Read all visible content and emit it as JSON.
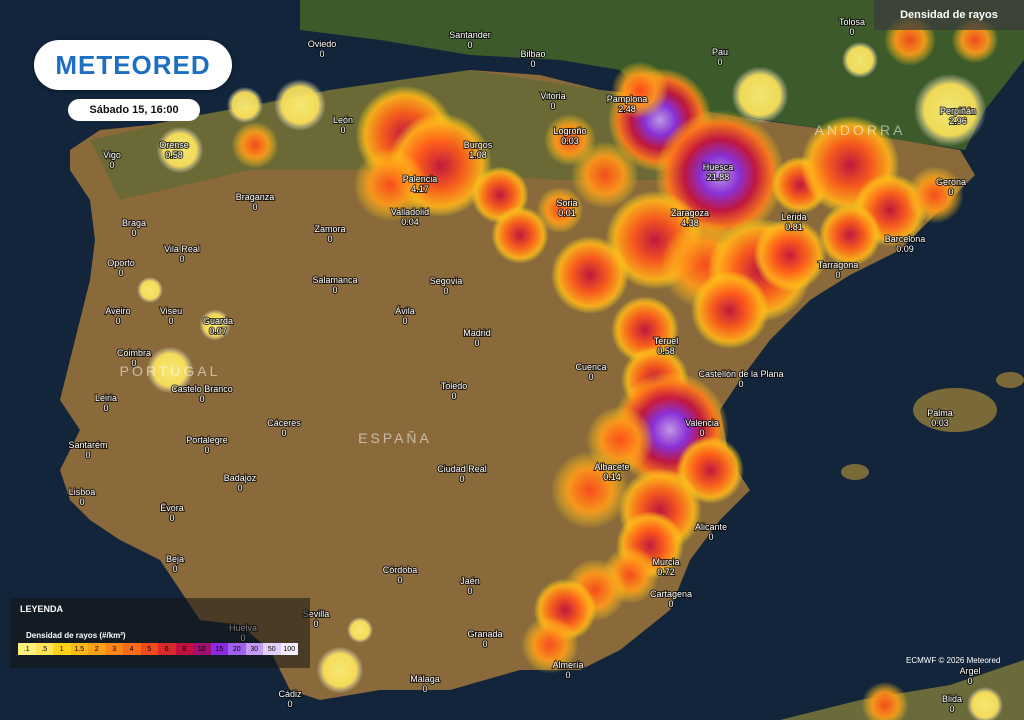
{
  "header": {
    "logo": "METEORED",
    "date": "Sábado 15, 16:00",
    "layer": "Densidad de rayos"
  },
  "map": {
    "countries": [
      "PORTUGAL",
      "ESPAÑA",
      "ANDORRA"
    ],
    "cities": [
      {
        "name": "Tolosa",
        "value": 0
      },
      {
        "name": "Santander",
        "value": 0
      },
      {
        "name": "Oviedo",
        "value": 0
      },
      {
        "name": "Bilbao",
        "value": 0
      },
      {
        "name": "Pau",
        "value": 0
      },
      {
        "name": "Vitoria",
        "value": 0
      },
      {
        "name": "Pamplona",
        "value": 2.48
      },
      {
        "name": "León",
        "value": 0
      },
      {
        "name": "Perpiñán",
        "value": 2.96
      },
      {
        "name": "Logroño",
        "value": 0.03
      },
      {
        "name": "Orense",
        "value": 0.58
      },
      {
        "name": "Burgos",
        "value": 1.08
      },
      {
        "name": "Vigo",
        "value": 0
      },
      {
        "name": "Huesca",
        "value": 21.88
      },
      {
        "name": "Palencia",
        "value": 4.17
      },
      {
        "name": "Gerona",
        "value": 0
      },
      {
        "name": "Braganza",
        "value": 0
      },
      {
        "name": "Soria",
        "value": 0.01
      },
      {
        "name": "Valladolid",
        "value": 0.04
      },
      {
        "name": "Zaragoza",
        "value": 4.38
      },
      {
        "name": "Lérida",
        "value": 0.81
      },
      {
        "name": "Braga",
        "value": 0
      },
      {
        "name": "Zamora",
        "value": 0
      },
      {
        "name": "Barcelona",
        "value": 0.09
      },
      {
        "name": "Vila Real",
        "value": 0
      },
      {
        "name": "Oporto",
        "value": 0
      },
      {
        "name": "Tarragona",
        "value": 0
      },
      {
        "name": "Salamanca",
        "value": 0
      },
      {
        "name": "Segovia",
        "value": 0
      },
      {
        "name": "Aveiro",
        "value": 0
      },
      {
        "name": "Viseu",
        "value": 0
      },
      {
        "name": "Ávila",
        "value": 0
      },
      {
        "name": "Guarda",
        "value": 0.07
      },
      {
        "name": "Madrid",
        "value": 0
      },
      {
        "name": "Teruel",
        "value": 0.58
      },
      {
        "name": "Coimbra",
        "value": 0
      },
      {
        "name": "Cuenca",
        "value": 0
      },
      {
        "name": "Castellón de la Plana",
        "value": 0
      },
      {
        "name": "Castelo Branco",
        "value": 0
      },
      {
        "name": "Toledo",
        "value": 0
      },
      {
        "name": "Leiria",
        "value": 0
      },
      {
        "name": "Palma",
        "value": 0.03
      },
      {
        "name": "Cáceres",
        "value": 0
      },
      {
        "name": "Valencia",
        "value": 0
      },
      {
        "name": "Santarém",
        "value": 0
      },
      {
        "name": "Portalegre",
        "value": 0
      },
      {
        "name": "Ciudad Real",
        "value": 0
      },
      {
        "name": "Albacete",
        "value": 0.14
      },
      {
        "name": "Badajoz",
        "value": 0
      },
      {
        "name": "Lisboa",
        "value": 0
      },
      {
        "name": "Évora",
        "value": 0
      },
      {
        "name": "Alicante",
        "value": 0
      },
      {
        "name": "Beja",
        "value": 0
      },
      {
        "name": "Murcia",
        "value": 0.72
      },
      {
        "name": "Córdoba",
        "value": 0
      },
      {
        "name": "Jaén",
        "value": 0
      },
      {
        "name": "Cartagena",
        "value": 0
      },
      {
        "name": "Sevilla",
        "value": 0
      },
      {
        "name": "Huelva",
        "value": 0
      },
      {
        "name": "Granada",
        "value": 0
      },
      {
        "name": "Almería",
        "value": 0
      },
      {
        "name": "Málaga",
        "value": 0
      },
      {
        "name": "Argel",
        "value": 0
      },
      {
        "name": "Cádiz",
        "value": 0
      },
      {
        "name": "Blida",
        "value": 0
      }
    ]
  },
  "legend": {
    "title": "LEYENDA",
    "subtitle": "Densidad de rayos (#/km²)",
    "labels": [
      ".1",
      ".5",
      "1",
      "1.5",
      "2",
      "3",
      "4",
      "5",
      "6",
      "8",
      "10",
      "15",
      "20",
      "30",
      "50",
      "100"
    ]
  },
  "footer": {
    "credits": "ECMWF © 2026 Meteored"
  }
}
